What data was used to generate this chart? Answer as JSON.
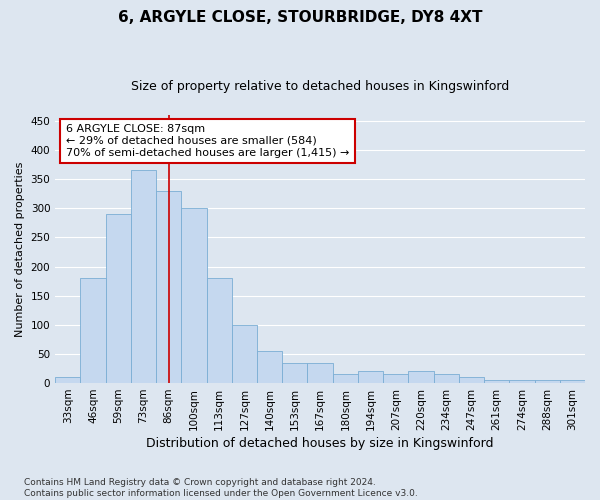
{
  "title": "6, ARGYLE CLOSE, STOURBRIDGE, DY8 4XT",
  "subtitle": "Size of property relative to detached houses in Kingswinford",
  "xlabel": "Distribution of detached houses by size in Kingswinford",
  "ylabel": "Number of detached properties",
  "categories": [
    "33sqm",
    "46sqm",
    "59sqm",
    "73sqm",
    "86sqm",
    "100sqm",
    "113sqm",
    "127sqm",
    "140sqm",
    "153sqm",
    "167sqm",
    "180sqm",
    "194sqm",
    "207sqm",
    "220sqm",
    "234sqm",
    "247sqm",
    "261sqm",
    "274sqm",
    "288sqm",
    "301sqm"
  ],
  "values": [
    10,
    180,
    290,
    365,
    330,
    300,
    180,
    100,
    55,
    35,
    35,
    15,
    20,
    15,
    20,
    15,
    10,
    5,
    5,
    5,
    5
  ],
  "bar_color": "#c5d8ef",
  "bar_edgecolor": "#7aadd4",
  "bar_width": 1.0,
  "property_line_x": 4.0,
  "property_line_color": "#cc0000",
  "annotation_text": "6 ARGYLE CLOSE: 87sqm\n← 29% of detached houses are smaller (584)\n70% of semi-detached houses are larger (1,415) →",
  "annotation_box_facecolor": "#ffffff",
  "annotation_box_edgecolor": "#cc0000",
  "ylim": [
    0,
    460
  ],
  "yticks": [
    0,
    50,
    100,
    150,
    200,
    250,
    300,
    350,
    400,
    450
  ],
  "background_color": "#dde6f0",
  "plot_background_color": "#dde6f0",
  "footer_text": "Contains HM Land Registry data © Crown copyright and database right 2024.\nContains public sector information licensed under the Open Government Licence v3.0.",
  "grid_color": "#ffffff",
  "title_fontsize": 11,
  "subtitle_fontsize": 9,
  "xlabel_fontsize": 9,
  "ylabel_fontsize": 8,
  "tick_fontsize": 7.5,
  "annotation_fontsize": 8,
  "footer_fontsize": 6.5
}
